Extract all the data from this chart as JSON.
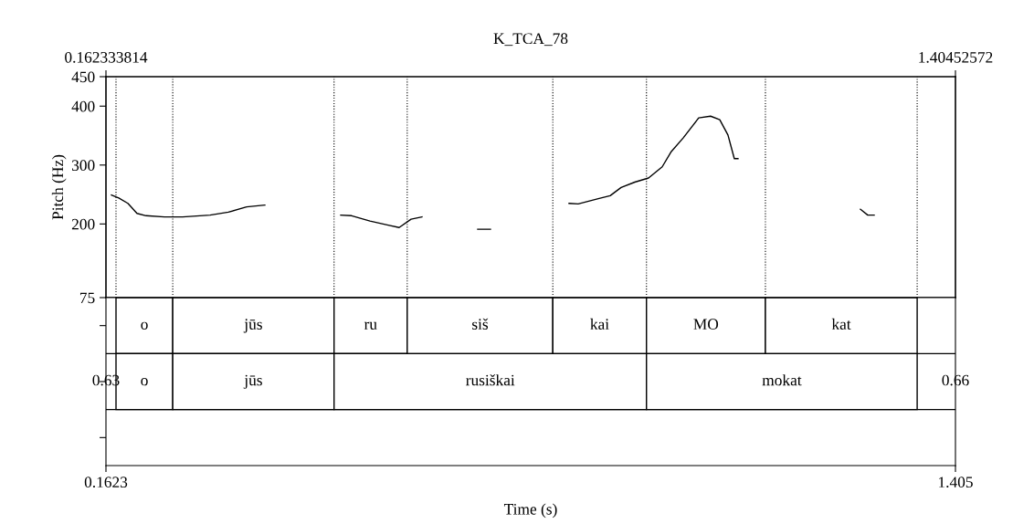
{
  "chart_data": [
    {
      "type": "line",
      "title": "K_TCA_78",
      "ylabel": "Pitch (Hz)",
      "xlim": [
        0.1623,
        1.405
      ],
      "ylim": [
        75,
        450
      ],
      "yticks": [
        75,
        200,
        300,
        400,
        450
      ],
      "x2lim": [
        0.162333814,
        1.40452572
      ],
      "x2ticks": [
        0.162333814,
        1.40452572
      ],
      "tick_labels": "y",
      "grid": false,
      "legend": false,
      "marker": "none",
      "line_style": "solid",
      "series": [
        {
          "color": "#000000",
          "x": [
            0.1703,
            0.181,
            0.1944,
            0.2077,
            0.221,
            0.2478,
            0.2745,
            0.3146,
            0.3413,
            0.368,
            0.3948,
            0.45,
            0.5057,
            0.5217,
            0.5485,
            0.5752,
            0.5912,
            0.6086,
            0.6246,
            0.66,
            0.7061,
            0.7248,
            0.78,
            0.8397,
            0.8531,
            0.8825,
            0.8999,
            0.9159,
            0.9359,
            0.956,
            0.976,
            0.9894,
            1.0067,
            1.0294,
            1.0468,
            1.0602,
            1.0722,
            1.0815,
            1.0869,
            1.2,
            1.266,
            1.2767,
            1.2861
          ],
          "values": [
            249,
            244,
            235,
            218,
            214,
            212,
            212,
            215,
            220,
            229,
            232,
            null,
            215,
            214,
            205,
            198,
            194,
            208,
            212,
            null,
            191,
            191,
            null,
            235,
            234,
            243,
            248,
            262,
            271,
            278,
            297,
            323,
            346,
            380,
            383,
            377,
            351,
            311,
            311,
            null,
            225,
            215,
            215
          ]
        }
      ],
      "ref_lines": [
        {
          "axis": "x",
          "value": 0.177,
          "line_style": "dotted"
        },
        {
          "axis": "x",
          "value": 0.26,
          "line_style": "dotted"
        },
        {
          "axis": "x",
          "value": 0.496,
          "line_style": "dotted"
        },
        {
          "axis": "x",
          "value": 0.603,
          "line_style": "dotted"
        },
        {
          "axis": "x",
          "value": 0.816,
          "line_style": "dotted"
        },
        {
          "axis": "x",
          "value": 0.953,
          "line_style": "dotted"
        },
        {
          "axis": "x",
          "value": 1.127,
          "line_style": "dotted"
        },
        {
          "axis": "x",
          "value": 1.349,
          "line_style": "dotted"
        }
      ]
    },
    {
      "type": "bar",
      "orientation": "horizontal",
      "categories": [
        null,
        null,
        null
      ],
      "xlim": [
        0.1623,
        1.405
      ],
      "xticks": [
        0.1623,
        1.405
      ],
      "xlabel": "Time (s)",
      "tick_labels": "x",
      "grid": false,
      "legend": false,
      "annotations": [
        "0.63",
        "0.66"
      ],
      "series": [
        {
          "color": "#ffffff",
          "base": [
            0.177,
            0.177,
            null
          ],
          "values": [
            0.083,
            0.083,
            null
          ],
          "value_labels": [
            "o",
            "o",
            null
          ]
        },
        {
          "color": "#ffffff",
          "base": [
            0.26,
            0.26,
            null
          ],
          "values": [
            0.236,
            0.236,
            null
          ],
          "value_labels": [
            "jūs",
            "jūs",
            null
          ]
        },
        {
          "color": "#ffffff",
          "base": [
            0.496,
            0.496,
            null
          ],
          "values": [
            0.107,
            0.457,
            null
          ],
          "value_labels": [
            "ru",
            "rusiškai",
            null
          ]
        },
        {
          "color": "#ffffff",
          "base": [
            0.603,
            0.953,
            null
          ],
          "values": [
            0.213,
            0.396,
            null
          ],
          "value_labels": [
            "siš",
            "mokat",
            null
          ]
        },
        {
          "color": "#ffffff",
          "base": [
            0.816,
            null,
            null
          ],
          "values": [
            0.137,
            null,
            null
          ],
          "value_labels": [
            "kai",
            null,
            null
          ]
        },
        {
          "color": "#ffffff",
          "base": [
            0.953,
            null,
            null
          ],
          "values": [
            0.174,
            null,
            null
          ],
          "value_labels": [
            "MO",
            null,
            null
          ]
        },
        {
          "color": "#ffffff",
          "base": [
            1.127,
            null,
            null
          ],
          "values": [
            0.222,
            null,
            null
          ],
          "value_labels": [
            "kat",
            null,
            null
          ]
        }
      ]
    }
  ]
}
